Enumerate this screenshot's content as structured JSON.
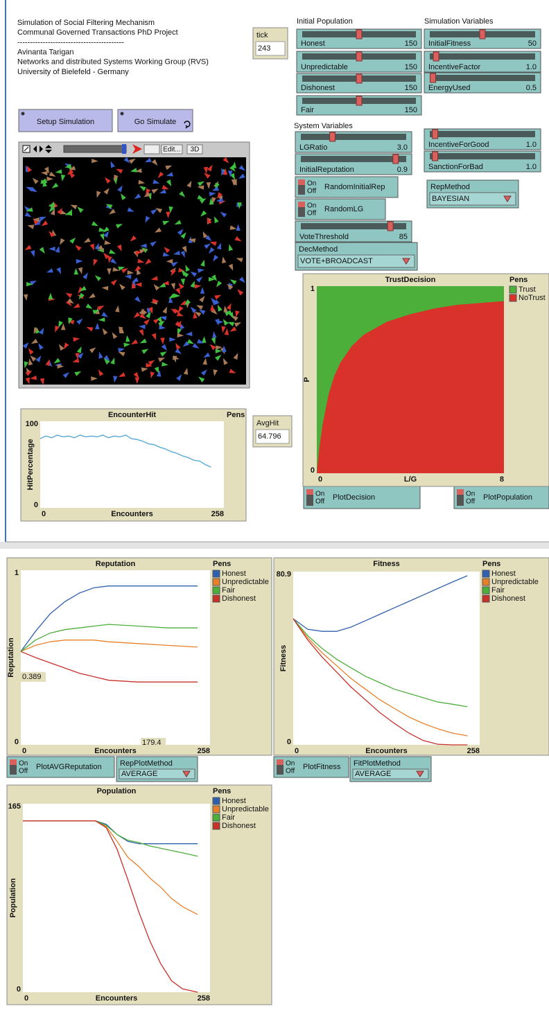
{
  "header": {
    "lines": [
      "Simulation of Social Filtering Mechanism",
      "Communal Governed Transactions PhD Project",
      "------------------------------------------",
      "Avinanta Tarigan",
      "Networks and distributed Systems Working Group (RVS)",
      "University of Bielefeld - Germany"
    ]
  },
  "section_titles": [
    "Initial Population",
    "Simulation Variables",
    "System Variables"
  ],
  "monitors": [
    {
      "label": "tick",
      "value": "243"
    },
    {
      "label": "AvgHit",
      "value": "64.796"
    }
  ],
  "buttons": [
    {
      "label": "Setup Simulation"
    },
    {
      "label": "Go Simulate"
    }
  ],
  "view_toolbar": {
    "edit": "Edit...",
    "three_d": "3D"
  },
  "sliders": [
    {
      "label": "Honest",
      "value": "150"
    },
    {
      "label": "Unpredictable",
      "value": "150"
    },
    {
      "label": "Dishonest",
      "value": "150"
    },
    {
      "label": "Fair",
      "value": "150"
    },
    {
      "label": "InitialFitness",
      "value": "50"
    },
    {
      "label": "IncentiveFactor",
      "value": "1.0"
    },
    {
      "label": "EnergyUsed",
      "value": "0.5"
    },
    {
      "label": "LGRatio",
      "value": "3.0"
    },
    {
      "label": "InitialReputation",
      "value": "0.9"
    },
    {
      "label": "VoteThreshold",
      "value": "85"
    },
    {
      "label": "IncentiveForGood",
      "value": "1.0"
    },
    {
      "label": "SanctionForBad",
      "value": "1.0"
    }
  ],
  "switch_states": {
    "on": "On",
    "off": "Off"
  },
  "switches": [
    {
      "label": "RandomInitialRep"
    },
    {
      "label": "RandomLG"
    },
    {
      "label": "PlotDecision"
    },
    {
      "label": "PlotPopulation"
    },
    {
      "label": "PlotAVGReputation"
    },
    {
      "label": "PlotFitness"
    }
  ],
  "choosers": [
    {
      "label": "RepMethod",
      "value": "BAYESIAN"
    },
    {
      "label": "DecMethod",
      "value": "VOTE+BROADCAST"
    },
    {
      "label": "RepPlotMethod",
      "value": "AVERAGE"
    },
    {
      "label": "FitPlotMethod",
      "value": "AVERAGE"
    }
  ],
  "plots": [
    {
      "type": "line",
      "title": "EncounterHit",
      "legend_title": "Pens",
      "xlabel": "Encounters",
      "ylabel": "HitPercentage",
      "xlim": [
        0,
        258
      ],
      "ylim": [
        0,
        100
      ],
      "x": [
        0,
        8,
        16,
        24,
        32,
        40,
        48,
        56,
        64,
        72,
        80,
        88,
        96,
        104,
        112,
        120,
        128,
        136,
        144,
        152,
        160,
        168,
        176,
        184,
        192,
        200,
        208,
        216,
        224,
        232,
        240
      ],
      "series": [
        {
          "color": "#4fa3d6",
          "values": [
            80,
            83,
            81,
            84,
            82,
            83,
            81,
            84,
            82,
            83,
            82,
            84,
            81,
            83,
            82,
            84,
            80,
            79,
            77,
            74,
            73,
            70,
            68,
            65,
            63,
            60,
            58,
            55,
            54,
            50,
            47
          ]
        }
      ]
    },
    {
      "type": "area",
      "title": "TrustDecision",
      "legend_title": "Pens",
      "xlabel": "L/G",
      "ylabel": "P",
      "xlim": [
        0,
        8
      ],
      "ylim": [
        0,
        1
      ],
      "x": [
        0,
        0.1,
        0.25,
        0.5,
        0.75,
        1,
        1.5,
        2,
        3,
        4,
        5,
        6,
        7,
        8
      ],
      "series": [
        {
          "name": "Trust",
          "color": "#4caf3a",
          "values": [
            1,
            1,
            1,
            1,
            1,
            1,
            1,
            1,
            1,
            1,
            1,
            1,
            1,
            1
          ]
        },
        {
          "name": "NoTrust",
          "color": "#d8322a",
          "values": [
            0,
            0.13,
            0.26,
            0.42,
            0.52,
            0.59,
            0.68,
            0.74,
            0.81,
            0.85,
            0.88,
            0.9,
            0.91,
            0.92
          ]
        }
      ]
    },
    {
      "type": "line",
      "title": "Reputation",
      "legend_title": "Pens",
      "xlabel": "Encounters",
      "ylabel": "Reputation",
      "xlim": [
        0,
        258
      ],
      "ylim": [
        0,
        1
      ],
      "annotations": [
        "0.389",
        "179.4"
      ],
      "x": [
        0,
        20,
        40,
        60,
        80,
        100,
        120,
        160,
        200,
        241
      ],
      "series": [
        {
          "name": "Honest",
          "color": "#2f5fae",
          "values": [
            0.535,
            0.65,
            0.75,
            0.82,
            0.87,
            0.9,
            0.91,
            0.91,
            0.91,
            0.91
          ]
        },
        {
          "name": "Unpredictable",
          "color": "#e8802a",
          "values": [
            0.535,
            0.57,
            0.59,
            0.6,
            0.6,
            0.6,
            0.59,
            0.58,
            0.57,
            0.56
          ]
        },
        {
          "name": "Fair",
          "color": "#4caf3a",
          "values": [
            0.535,
            0.6,
            0.64,
            0.66,
            0.67,
            0.68,
            0.69,
            0.68,
            0.67,
            0.67
          ]
        },
        {
          "name": "Dishonest",
          "color": "#c8302a",
          "values": [
            0.535,
            0.5,
            0.47,
            0.44,
            0.41,
            0.39,
            0.37,
            0.36,
            0.36,
            0.36
          ]
        }
      ]
    },
    {
      "type": "line",
      "title": "Fitness",
      "legend_title": "Pens",
      "xlabel": "Encounters",
      "ylabel": "Fitness",
      "xlim": [
        0,
        258
      ],
      "ylim": [
        0,
        80.9
      ],
      "x": [
        0,
        20,
        40,
        60,
        80,
        100,
        120,
        140,
        160,
        180,
        200,
        220,
        241
      ],
      "series": [
        {
          "name": "Honest",
          "color": "#2f5fae",
          "values": [
            58.9,
            54,
            53,
            53,
            55,
            58,
            61,
            64,
            67,
            70,
            73,
            76,
            79
          ]
        },
        {
          "name": "Unpredictable",
          "color": "#e8802a",
          "values": [
            58.9,
            50,
            43,
            37,
            31,
            26,
            21,
            17,
            13,
            10,
            7.5,
            5.5,
            4.2
          ]
        },
        {
          "name": "Fair",
          "color": "#4caf3a",
          "values": [
            58.9,
            51,
            45,
            40,
            36,
            32,
            29,
            26,
            24,
            22,
            20,
            19,
            17.8
          ]
        },
        {
          "name": "Dishonest",
          "color": "#c8302a",
          "values": [
            58.9,
            49,
            41,
            34,
            27,
            21,
            15,
            10,
            5.5,
            2,
            0.3,
            0,
            0
          ]
        }
      ]
    },
    {
      "type": "line",
      "title": "Population",
      "legend_title": "Pens",
      "xlabel": "Encounters",
      "ylabel": "Population",
      "xlim": [
        0,
        258
      ],
      "ylim": [
        0,
        165
      ],
      "x": [
        0,
        100,
        115,
        130,
        145,
        160,
        175,
        190,
        205,
        220,
        241
      ],
      "series": [
        {
          "name": "Honest",
          "color": "#2f5fae",
          "values": [
            150,
            150,
            147,
            138,
            132,
            130,
            130,
            130,
            130,
            130,
            130
          ]
        },
        {
          "name": "Unpredictable",
          "color": "#e8802a",
          "values": [
            150,
            150,
            145,
            132,
            118,
            110,
            100,
            92,
            82,
            75,
            68
          ]
        },
        {
          "name": "Fair",
          "color": "#4caf3a",
          "values": [
            150,
            150,
            146,
            138,
            133,
            131,
            128,
            126,
            124,
            122,
            119
          ]
        },
        {
          "name": "Dishonest",
          "color": "#c8302a",
          "values": [
            150,
            150,
            144,
            125,
            98,
            70,
            45,
            25,
            10,
            3,
            0
          ]
        }
      ]
    }
  ]
}
